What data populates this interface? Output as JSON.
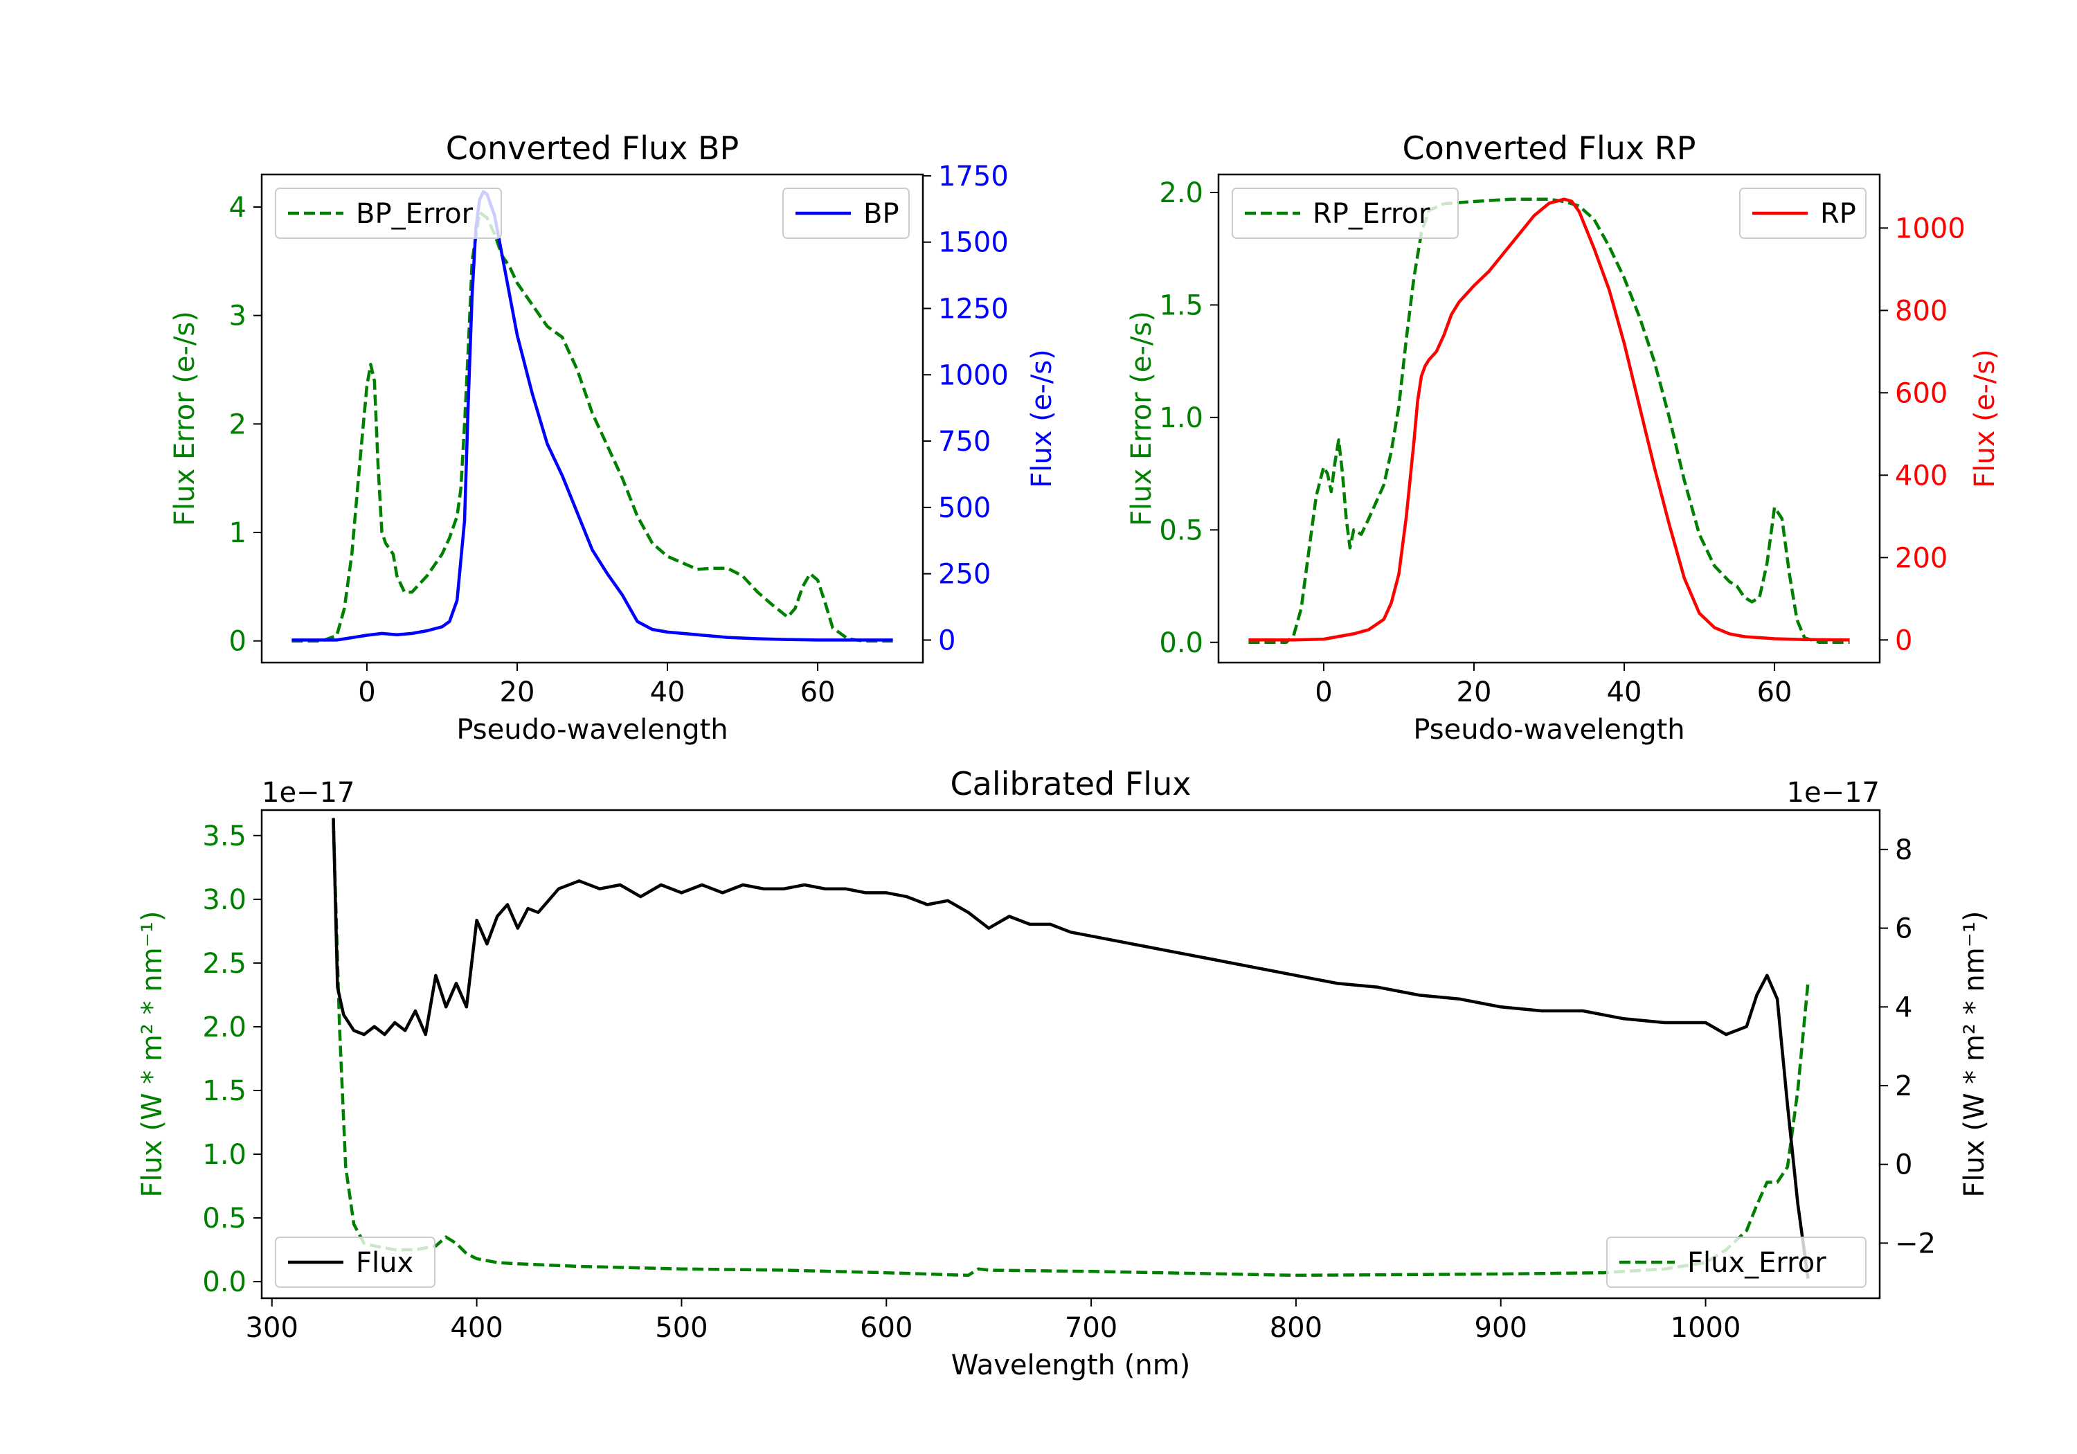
{
  "figure": {
    "colors": {
      "green": "#008000",
      "blue": "#0000ff",
      "red": "#ff0000",
      "black": "#000000",
      "axis": "#000000"
    }
  },
  "chart_data": [
    {
      "id": "bp",
      "type": "line",
      "title": "Converted Flux BP",
      "xlabel": "Pseudo-wavelength",
      "xlim": [
        -14,
        74
      ],
      "xticks": [
        0,
        20,
        40,
        60
      ],
      "left_axis": {
        "label": "Flux Error (e-/s)",
        "color": "#008000",
        "ylim": [
          -0.2,
          4.3
        ],
        "ticks": [
          0,
          1,
          2,
          3,
          4
        ]
      },
      "right_axis": {
        "label": "Flux (e-/s)",
        "color": "#0000ff",
        "ylim": [
          -85,
          1755
        ],
        "ticks": [
          0,
          250,
          500,
          750,
          1000,
          1250,
          1500,
          1750
        ]
      },
      "legend_left": "BP_Error",
      "legend_right": "BP",
      "series": [
        {
          "name": "BP_Error",
          "axis": "left",
          "style": "dashed",
          "color": "#008000",
          "x": [
            -10,
            -6,
            -4,
            -3,
            -2,
            -1,
            0,
            0.5,
            1,
            1.5,
            2,
            2.5,
            3,
            3.5,
            4,
            5,
            6,
            8,
            10,
            11,
            12,
            12.5,
            13,
            13.5,
            14,
            15,
            16,
            17,
            18,
            19,
            20,
            22,
            24,
            26,
            28,
            30,
            32,
            34,
            36,
            38,
            40,
            42,
            44,
            46,
            48,
            50,
            52,
            54,
            56,
            57,
            58,
            59,
            60,
            61,
            62,
            64,
            66,
            70
          ],
          "y": [
            0,
            0,
            0.05,
            0.3,
            0.8,
            1.6,
            2.35,
            2.55,
            2.4,
            1.6,
            1.0,
            0.9,
            0.85,
            0.8,
            0.6,
            0.45,
            0.45,
            0.6,
            0.8,
            0.95,
            1.15,
            1.4,
            2.0,
            2.7,
            3.5,
            3.95,
            3.9,
            3.75,
            3.55,
            3.45,
            3.3,
            3.1,
            2.9,
            2.8,
            2.5,
            2.1,
            1.8,
            1.5,
            1.15,
            0.9,
            0.78,
            0.72,
            0.66,
            0.67,
            0.67,
            0.6,
            0.45,
            0.33,
            0.22,
            0.3,
            0.5,
            0.62,
            0.56,
            0.35,
            0.12,
            0.02,
            0,
            0
          ]
        },
        {
          "name": "BP",
          "axis": "right",
          "style": "solid",
          "color": "#0000ff",
          "x": [
            -10,
            -4,
            0,
            2,
            4,
            6,
            8,
            10,
            11,
            12,
            13,
            13.5,
            14,
            14.5,
            15,
            15.5,
            16,
            16.5,
            17,
            18,
            20,
            22,
            24,
            26,
            28,
            30,
            32,
            34,
            36,
            38,
            40,
            44,
            48,
            52,
            56,
            60,
            64,
            70
          ],
          "y": [
            0,
            0,
            18,
            25,
            20,
            25,
            35,
            50,
            70,
            150,
            450,
            900,
            1300,
            1550,
            1660,
            1690,
            1680,
            1640,
            1600,
            1450,
            1150,
            930,
            740,
            620,
            480,
            340,
            250,
            170,
            70,
            40,
            30,
            20,
            10,
            5,
            2,
            0,
            0,
            0
          ]
        }
      ]
    },
    {
      "id": "rp",
      "type": "line",
      "title": "Converted Flux RP",
      "xlabel": "Pseudo-wavelength",
      "xlim": [
        -14,
        74
      ],
      "xticks": [
        0,
        20,
        40,
        60
      ],
      "left_axis": {
        "label": "Flux Error (e-/s)",
        "color": "#008000",
        "ylim": [
          -0.09,
          2.08
        ],
        "ticks": [
          0.0,
          0.5,
          1.0,
          1.5,
          2.0
        ]
      },
      "right_axis": {
        "label": "Flux (e-/s)",
        "color": "#ff0000",
        "ylim": [
          -55,
          1130
        ],
        "ticks": [
          0,
          200,
          400,
          600,
          800,
          1000
        ]
      },
      "legend_left": "RP_Error",
      "legend_right": "RP",
      "series": [
        {
          "name": "RP_Error",
          "axis": "left",
          "style": "dashed",
          "color": "#008000",
          "x": [
            -10,
            -5,
            -4,
            -3,
            -2,
            -1,
            0,
            0.5,
            1,
            1.5,
            2,
            2.5,
            3,
            3.5,
            4,
            5,
            6,
            8,
            9,
            10,
            11,
            12,
            13,
            14,
            16,
            20,
            25,
            30,
            32,
            34,
            36,
            38,
            40,
            42,
            44,
            46,
            48,
            50,
            52,
            54,
            55,
            56,
            57,
            58,
            59,
            60,
            61,
            62,
            63,
            64,
            66,
            70
          ],
          "y": [
            0,
            0,
            0.03,
            0.15,
            0.4,
            0.65,
            0.78,
            0.75,
            0.67,
            0.8,
            0.9,
            0.75,
            0.55,
            0.42,
            0.5,
            0.48,
            0.55,
            0.7,
            0.85,
            1.05,
            1.35,
            1.62,
            1.82,
            1.92,
            1.95,
            1.96,
            1.97,
            1.97,
            1.96,
            1.94,
            1.88,
            1.76,
            1.62,
            1.45,
            1.25,
            1.0,
            0.72,
            0.48,
            0.34,
            0.27,
            0.25,
            0.2,
            0.18,
            0.2,
            0.35,
            0.6,
            0.55,
            0.3,
            0.1,
            0.02,
            0,
            0
          ]
        },
        {
          "name": "RP",
          "axis": "right",
          "style": "solid",
          "color": "#ff0000",
          "x": [
            -10,
            -4,
            0,
            4,
            6,
            8,
            9,
            10,
            11,
            12,
            12.5,
            13,
            13.5,
            14,
            15,
            16,
            17,
            18,
            20,
            22,
            24,
            26,
            28,
            30,
            32,
            33,
            34,
            36,
            38,
            40,
            42,
            44,
            46,
            48,
            50,
            52,
            54,
            56,
            60,
            64,
            70
          ],
          "y": [
            0,
            0,
            2,
            15,
            25,
            50,
            90,
            160,
            300,
            480,
            580,
            640,
            665,
            680,
            700,
            740,
            790,
            820,
            860,
            895,
            940,
            985,
            1030,
            1060,
            1070,
            1065,
            1040,
            950,
            850,
            720,
            570,
            420,
            280,
            150,
            65,
            30,
            15,
            8,
            3,
            1,
            0
          ]
        }
      ]
    },
    {
      "id": "calibrated",
      "type": "line",
      "title": "Calibrated Flux",
      "xlabel": "Wavelength (nm)",
      "xlim": [
        295,
        1085
      ],
      "xticks": [
        300,
        400,
        500,
        600,
        700,
        800,
        900,
        1000
      ],
      "left_axis": {
        "label": "Flux (W * m² * nm⁻¹)",
        "color": "#008000",
        "ylim": [
          -0.13,
          3.7
        ],
        "ticks": [
          0.0,
          0.5,
          1.0,
          1.5,
          2.0,
          2.5,
          3.0,
          3.5
        ],
        "offset_text": "1e−17"
      },
      "right_axis": {
        "label": "Flux (W * m² * nm⁻¹)",
        "color": "#000000",
        "ylim": [
          -3.4,
          9.0
        ],
        "ticks": [
          -2,
          0,
          2,
          4,
          6,
          8
        ],
        "offset_text": "1e−17"
      },
      "legend_left": "Flux",
      "legend_right": "Flux_Error",
      "series": [
        {
          "name": "Flux_Error",
          "axis": "left",
          "style": "dashed",
          "color": "#008000",
          "x": [
            330,
            333,
            336,
            340,
            345,
            350,
            360,
            370,
            380,
            385,
            390,
            395,
            400,
            410,
            420,
            450,
            500,
            550,
            600,
            640,
            645,
            650,
            700,
            800,
            900,
            950,
            980,
            1000,
            1010,
            1020,
            1025,
            1030,
            1035,
            1040,
            1045,
            1050
          ],
          "y": [
            3.6,
            2.0,
            0.9,
            0.45,
            0.3,
            0.28,
            0.25,
            0.25,
            0.28,
            0.35,
            0.3,
            0.22,
            0.18,
            0.15,
            0.14,
            0.12,
            0.1,
            0.09,
            0.07,
            0.05,
            0.1,
            0.09,
            0.08,
            0.05,
            0.06,
            0.07,
            0.1,
            0.15,
            0.25,
            0.4,
            0.6,
            0.78,
            0.78,
            0.9,
            1.5,
            2.35
          ]
        },
        {
          "name": "Flux",
          "axis": "right",
          "style": "solid",
          "color": "#000000",
          "x": [
            330,
            332,
            335,
            340,
            345,
            350,
            355,
            360,
            365,
            370,
            375,
            380,
            385,
            390,
            395,
            400,
            405,
            410,
            415,
            420,
            425,
            430,
            440,
            450,
            460,
            470,
            480,
            490,
            500,
            510,
            520,
            530,
            540,
            550,
            560,
            570,
            580,
            590,
            600,
            610,
            620,
            630,
            640,
            650,
            660,
            670,
            680,
            690,
            700,
            720,
            740,
            760,
            780,
            800,
            820,
            840,
            860,
            880,
            900,
            920,
            940,
            960,
            980,
            1000,
            1010,
            1020,
            1025,
            1030,
            1035,
            1040,
            1045,
            1050
          ],
          "y": [
            8.8,
            4.5,
            3.8,
            3.4,
            3.3,
            3.5,
            3.3,
            3.6,
            3.4,
            3.9,
            3.3,
            4.8,
            4.0,
            4.6,
            4.0,
            6.2,
            5.6,
            6.3,
            6.6,
            6.0,
            6.5,
            6.4,
            7.0,
            7.2,
            7.0,
            7.1,
            6.8,
            7.1,
            6.9,
            7.1,
            6.9,
            7.1,
            7.0,
            7.0,
            7.1,
            7.0,
            7.0,
            6.9,
            6.9,
            6.8,
            6.6,
            6.7,
            6.4,
            6.0,
            6.3,
            6.1,
            6.1,
            5.9,
            5.8,
            5.6,
            5.4,
            5.2,
            5.0,
            4.8,
            4.6,
            4.5,
            4.3,
            4.2,
            4.0,
            3.9,
            3.9,
            3.7,
            3.6,
            3.6,
            3.3,
            3.5,
            4.3,
            4.8,
            4.2,
            1.5,
            -1.0,
            -2.9
          ]
        }
      ]
    }
  ]
}
